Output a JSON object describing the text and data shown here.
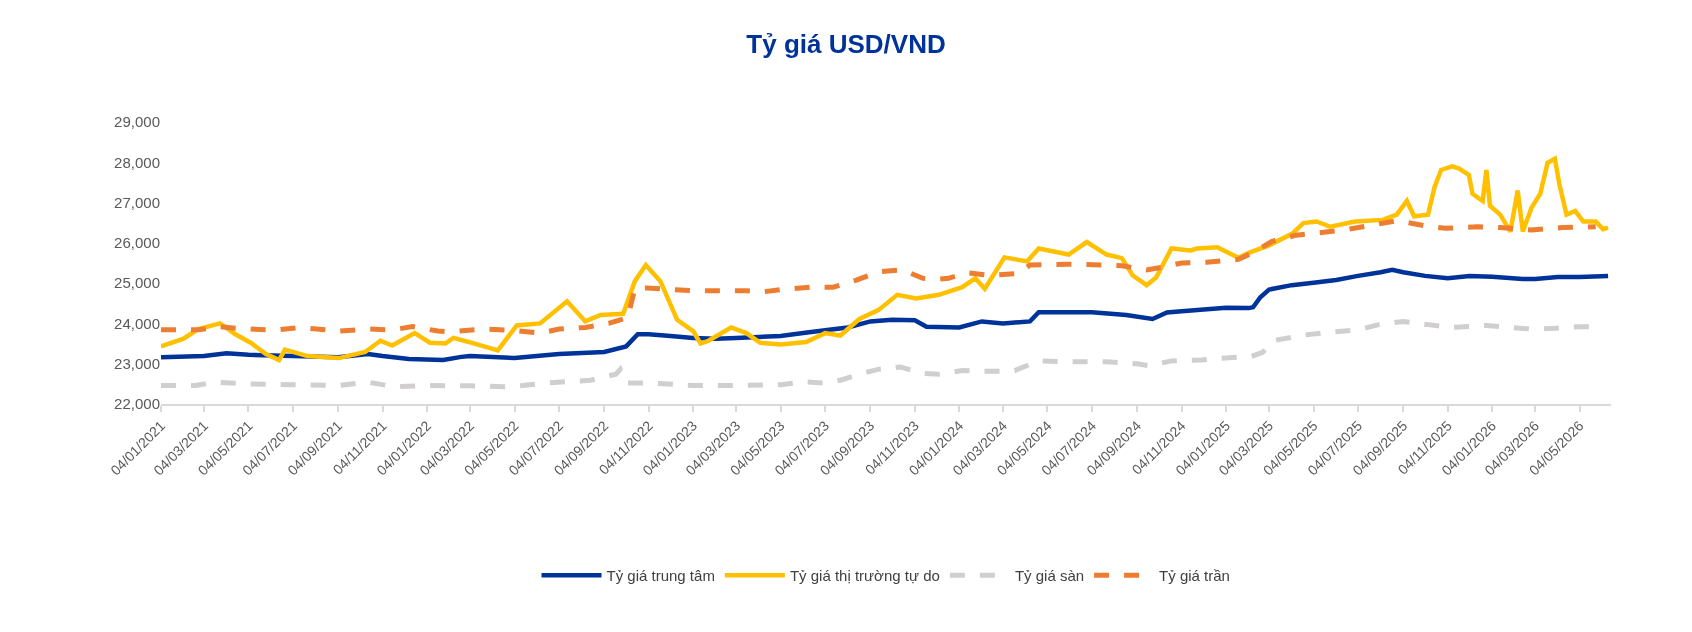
{
  "chart_data": {
    "type": "line",
    "title": "Tỷ giá USD/VND",
    "ylim": [
      22000,
      29000
    ],
    "yticks": [
      {
        "value": 22000,
        "label": "22,000"
      },
      {
        "value": 23000,
        "label": "23,000"
      },
      {
        "value": 24000,
        "label": "24,000"
      },
      {
        "value": 25000,
        "label": "25,000"
      },
      {
        "value": 26000,
        "label": "26,000"
      },
      {
        "value": 27000,
        "label": "27,000"
      },
      {
        "value": 28000,
        "label": "28,000"
      },
      {
        "value": 29000,
        "label": "29,000"
      }
    ],
    "xlim": [
      "2021-01-04",
      "2026-06-16"
    ],
    "xticks": [
      {
        "value": "2021-01-04",
        "label": "04/01/2021"
      },
      {
        "value": "2021-03-04",
        "label": "04/03/2021"
      },
      {
        "value": "2021-05-04",
        "label": "04/05/2021"
      },
      {
        "value": "2021-07-04",
        "label": "04/07/2021"
      },
      {
        "value": "2021-09-04",
        "label": "04/09/2021"
      },
      {
        "value": "2021-11-04",
        "label": "04/11/2021"
      },
      {
        "value": "2022-01-04",
        "label": "04/01/2022"
      },
      {
        "value": "2022-03-04",
        "label": "04/03/2022"
      },
      {
        "value": "2022-05-04",
        "label": "04/05/2022"
      },
      {
        "value": "2022-07-04",
        "label": "04/07/2022"
      },
      {
        "value": "2022-09-04",
        "label": "04/09/2022"
      },
      {
        "value": "2022-11-04",
        "label": "04/11/2022"
      },
      {
        "value": "2023-01-04",
        "label": "04/01/2023"
      },
      {
        "value": "2023-03-04",
        "label": "04/03/2023"
      },
      {
        "value": "2023-05-04",
        "label": "04/05/2023"
      },
      {
        "value": "2023-07-04",
        "label": "04/07/2023"
      },
      {
        "value": "2023-09-04",
        "label": "04/09/2023"
      },
      {
        "value": "2023-11-04",
        "label": "04/11/2023"
      },
      {
        "value": "2024-01-04",
        "label": "04/01/2024"
      },
      {
        "value": "2024-03-04",
        "label": "04/03/2024"
      },
      {
        "value": "2024-05-04",
        "label": "04/05/2024"
      },
      {
        "value": "2024-07-04",
        "label": "04/07/2024"
      },
      {
        "value": "2024-09-04",
        "label": "04/09/2024"
      },
      {
        "value": "2024-11-04",
        "label": "04/11/2024"
      },
      {
        "value": "2025-01-04",
        "label": "04/01/2025"
      },
      {
        "value": "2025-03-04",
        "label": "04/03/2025"
      },
      {
        "value": "2025-05-04",
        "label": "04/05/2025"
      },
      {
        "value": "2025-07-04",
        "label": "04/07/2025"
      },
      {
        "value": "2025-09-04",
        "label": "04/09/2025"
      },
      {
        "value": "2025-11-04",
        "label": "04/11/2025"
      },
      {
        "value": "2026-01-04",
        "label": "04/01/2026"
      },
      {
        "value": "2026-03-04",
        "label": "04/03/2026"
      },
      {
        "value": "2026-05-04",
        "label": "04/05/2026"
      }
    ],
    "grid": false,
    "legend": "bottom",
    "marker": "none",
    "series": [
      {
        "name": "Tỷ giá trung tâm",
        "color": "#003399",
        "line_style": "solid",
        "x": [
          "2021-01-04",
          "2021-03-04",
          "2021-04-04",
          "2021-05-04",
          "2021-07-04",
          "2021-09-04",
          "2021-10-15",
          "2021-11-04",
          "2021-12-10",
          "2022-01-26",
          "2022-02-20",
          "2022-03-04",
          "2022-05-04",
          "2022-07-04",
          "2022-09-04",
          "2022-10-04",
          "2022-10-20",
          "2022-11-04",
          "2022-12-04",
          "2023-01-04",
          "2023-02-04",
          "2023-03-04",
          "2023-05-04",
          "2023-06-04",
          "2023-07-04",
          "2023-08-04",
          "2023-09-04",
          "2023-10-04",
          "2023-11-04",
          "2023-11-20",
          "2024-01-04",
          "2024-02-04",
          "2024-03-04",
          "2024-04-10",
          "2024-04-22",
          "2024-07-04",
          "2024-08-20",
          "2024-09-25",
          "2024-10-15",
          "2024-11-04",
          "2025-01-04",
          "2025-02-04",
          "2025-02-10",
          "2025-02-20",
          "2025-03-04",
          "2025-04-04",
          "2025-05-04",
          "2025-06-04",
          "2025-07-04",
          "2025-08-04",
          "2025-08-20",
          "2025-09-04",
          "2025-10-04",
          "2025-11-04",
          "2025-12-04",
          "2026-01-04",
          "2026-02-15",
          "2026-03-04",
          "2026-04-04",
          "2026-05-04",
          "2026-06-12"
        ],
        "values": [
          23160,
          23190,
          23260,
          23220,
          23190,
          23160,
          23240,
          23190,
          23120,
          23090,
          23170,
          23190,
          23140,
          23240,
          23290,
          23430,
          23730,
          23730,
          23690,
          23640,
          23620,
          23640,
          23690,
          23760,
          23830,
          23900,
          24050,
          24090,
          24080,
          23920,
          23900,
          24050,
          24000,
          24050,
          24280,
          24280,
          24210,
          24110,
          24270,
          24300,
          24390,
          24380,
          24400,
          24650,
          24840,
          24950,
          25010,
          25080,
          25180,
          25270,
          25330,
          25270,
          25180,
          25120,
          25180,
          25160,
          25100,
          25100,
          25150,
          25150,
          25180
        ]
      },
      {
        "name": "Tỷ giá thị trường tự do",
        "color": "#ffc000",
        "line_style": "solid",
        "x": [
          "2021-01-04",
          "2021-02-04",
          "2021-02-24",
          "2021-03-26",
          "2021-04-16",
          "2021-05-07",
          "2021-05-28",
          "2021-06-15",
          "2021-06-23",
          "2021-07-24",
          "2021-09-05",
          "2021-10-11",
          "2021-11-01",
          "2021-11-17",
          "2021-12-18",
          "2022-01-08",
          "2022-01-29",
          "2022-02-09",
          "2022-03-02",
          "2022-04-11",
          "2022-05-07",
          "2022-06-08",
          "2022-07-15",
          "2022-08-09",
          "2022-08-30",
          "2022-09-30",
          "2022-10-16",
          "2022-10-31",
          "2022-11-20",
          "2022-12-13",
          "2023-01-04",
          "2023-01-14",
          "2023-01-25",
          "2023-02-25",
          "2023-03-18",
          "2023-04-06",
          "2023-05-04",
          "2023-06-08",
          "2023-07-04",
          "2023-07-25",
          "2023-08-20",
          "2023-09-15",
          "2023-10-11",
          "2023-11-06",
          "2023-12-07",
          "2024-01-08",
          "2024-01-26",
          "2024-02-08",
          "2024-03-06",
          "2024-04-06",
          "2024-04-22",
          "2024-06-02",
          "2024-06-27",
          "2024-07-24",
          "2024-08-14",
          "2024-08-29",
          "2024-09-17",
          "2024-09-30",
          "2024-10-21",
          "2024-11-16",
          "2024-11-25",
          "2024-12-23",
          "2025-01-21",
          "2025-02-05",
          "2025-03-03",
          "2025-04-05",
          "2025-04-20",
          "2025-05-08",
          "2025-05-27",
          "2025-06-30",
          "2025-08-07",
          "2025-08-26",
          "2025-09-09",
          "2025-09-19",
          "2025-10-08",
          "2025-10-17",
          "2025-10-26",
          "2025-11-10",
          "2025-11-19",
          "2025-12-03",
          "2025-12-08",
          "2025-12-22",
          "2025-12-27",
          "2026-01-01",
          "2026-01-15",
          "2026-01-29",
          "2026-02-08",
          "2026-02-15",
          "2026-02-27",
          "2026-03-11",
          "2026-03-21",
          "2026-03-31",
          "2026-04-06",
          "2026-04-16",
          "2026-04-28",
          "2026-05-09",
          "2026-05-26",
          "2026-06-05",
          "2026-06-12"
        ],
        "values": [
          23430,
          23620,
          23860,
          24000,
          23730,
          23520,
          23240,
          23090,
          23350,
          23190,
          23140,
          23290,
          23570,
          23450,
          23760,
          23520,
          23500,
          23640,
          23540,
          23330,
          23950,
          24000,
          24550,
          24050,
          24210,
          24240,
          25050,
          25450,
          25050,
          24090,
          23810,
          23500,
          23570,
          23900,
          23760,
          23520,
          23480,
          23540,
          23760,
          23700,
          24110,
          24330,
          24710,
          24620,
          24710,
          24900,
          25120,
          24860,
          25640,
          25540,
          25860,
          25710,
          26020,
          25710,
          25620,
          25190,
          24950,
          25140,
          25860,
          25810,
          25860,
          25890,
          25630,
          25760,
          25930,
          26230,
          26490,
          26530,
          26400,
          26530,
          26570,
          26700,
          27040,
          26660,
          26700,
          27390,
          27810,
          27900,
          27850,
          27690,
          27220,
          27040,
          27810,
          26920,
          26700,
          26280,
          27300,
          26280,
          26870,
          27220,
          27990,
          28090,
          27470,
          26700,
          26790,
          26530,
          26530,
          26340,
          26380
        ]
      },
      {
        "name": "Tỷ giá sàn",
        "color": "#d0cece",
        "line_style": "dashed",
        "x": [
          "2021-01-04",
          "2021-02-20",
          "2021-03-18",
          "2021-05-02",
          "2021-07-04",
          "2021-09-04",
          "2021-10-15",
          "2021-11-20",
          "2022-01-04",
          "2022-03-04",
          "2022-04-20",
          "2022-05-15",
          "2022-06-15",
          "2022-08-16",
          "2022-09-20",
          "2022-09-26",
          "2022-10-04",
          "2022-11-04",
          "2023-01-04",
          "2023-03-04",
          "2023-05-04",
          "2023-06-08",
          "2023-07-04",
          "2023-07-25",
          "2023-08-20",
          "2023-09-15",
          "2023-10-15",
          "2023-11-15",
          "2023-12-07",
          "2024-01-08",
          "2024-02-20",
          "2024-03-20",
          "2024-04-22",
          "2024-06-02",
          "2024-07-24",
          "2024-09-04",
          "2024-09-20",
          "2024-10-21",
          "2024-12-01",
          "2025-01-08",
          "2025-02-08",
          "2025-02-23",
          "2025-03-12",
          "2025-04-20",
          "2025-05-27",
          "2025-07-04",
          "2025-08-01",
          "2025-09-04",
          "2025-10-08",
          "2025-11-10",
          "2025-12-27",
          "2026-01-29",
          "2026-02-27",
          "2026-04-01",
          "2026-05-04",
          "2026-05-26"
        ],
        "values": [
          22460,
          22460,
          22540,
          22500,
          22480,
          22460,
          22540,
          22430,
          22460,
          22450,
          22430,
          22460,
          22520,
          22590,
          22740,
          22860,
          22520,
          22520,
          22460,
          22460,
          22480,
          22550,
          22520,
          22590,
          22740,
          22860,
          22920,
          22760,
          22740,
          22830,
          22810,
          22830,
          23070,
          23050,
          23050,
          23000,
          22950,
          23070,
          23090,
          23150,
          23180,
          23280,
          23580,
          23710,
          23780,
          23840,
          23970,
          24050,
          23970,
          23900,
          23950,
          23900,
          23860,
          23880,
          23920,
          23920
        ]
      },
      {
        "name": "Tỷ giá trần",
        "color": "#ed7d31",
        "line_style": "dashed",
        "x": [
          "2021-01-04",
          "2021-02-24",
          "2021-03-26",
          "2021-04-16",
          "2021-06-08",
          "2021-07-14",
          "2021-09-05",
          "2021-10-16",
          "2021-11-17",
          "2021-12-15",
          "2022-01-19",
          "2022-02-04",
          "2022-03-21",
          "2022-05-02",
          "2022-06-08",
          "2022-07-04",
          "2022-08-09",
          "2022-09-10",
          "2022-10-06",
          "2022-10-16",
          "2022-11-01",
          "2022-12-08",
          "2023-01-04",
          "2023-03-18",
          "2023-04-08",
          "2023-05-04",
          "2023-06-13",
          "2023-07-15",
          "2023-08-15",
          "2023-09-15",
          "2023-10-18",
          "2023-11-15",
          "2023-12-07",
          "2023-12-20",
          "2024-01-15",
          "2024-02-15",
          "2024-03-25",
          "2024-04-10",
          "2024-06-02",
          "2024-07-24",
          "2024-08-14",
          "2024-09-17",
          "2024-10-04",
          "2024-11-04",
          "2024-12-08",
          "2025-01-21",
          "2025-02-10",
          "2025-03-08",
          "2025-04-10",
          "2025-05-12",
          "2025-06-15",
          "2025-07-20",
          "2025-08-26",
          "2025-10-02",
          "2025-11-01",
          "2025-12-15",
          "2026-01-15",
          "2026-02-27",
          "2026-04-10",
          "2026-05-26"
        ],
        "values": [
          23840,
          23840,
          23920,
          23880,
          23830,
          23900,
          23810,
          23860,
          23840,
          23920,
          23810,
          23790,
          23860,
          23830,
          23760,
          23860,
          23900,
          24000,
          24140,
          24860,
          24880,
          24840,
          24810,
          24810,
          24780,
          24840,
          24900,
          24900,
          25070,
          25280,
          25330,
          25120,
          25100,
          25120,
          25260,
          25190,
          25240,
          25450,
          25470,
          25450,
          25430,
          25330,
          25380,
          25500,
          25520,
          25590,
          25760,
          26040,
          26190,
          26250,
          26320,
          26430,
          26550,
          26430,
          26360,
          26400,
          26380,
          26320,
          26380,
          26400
        ]
      }
    ]
  }
}
